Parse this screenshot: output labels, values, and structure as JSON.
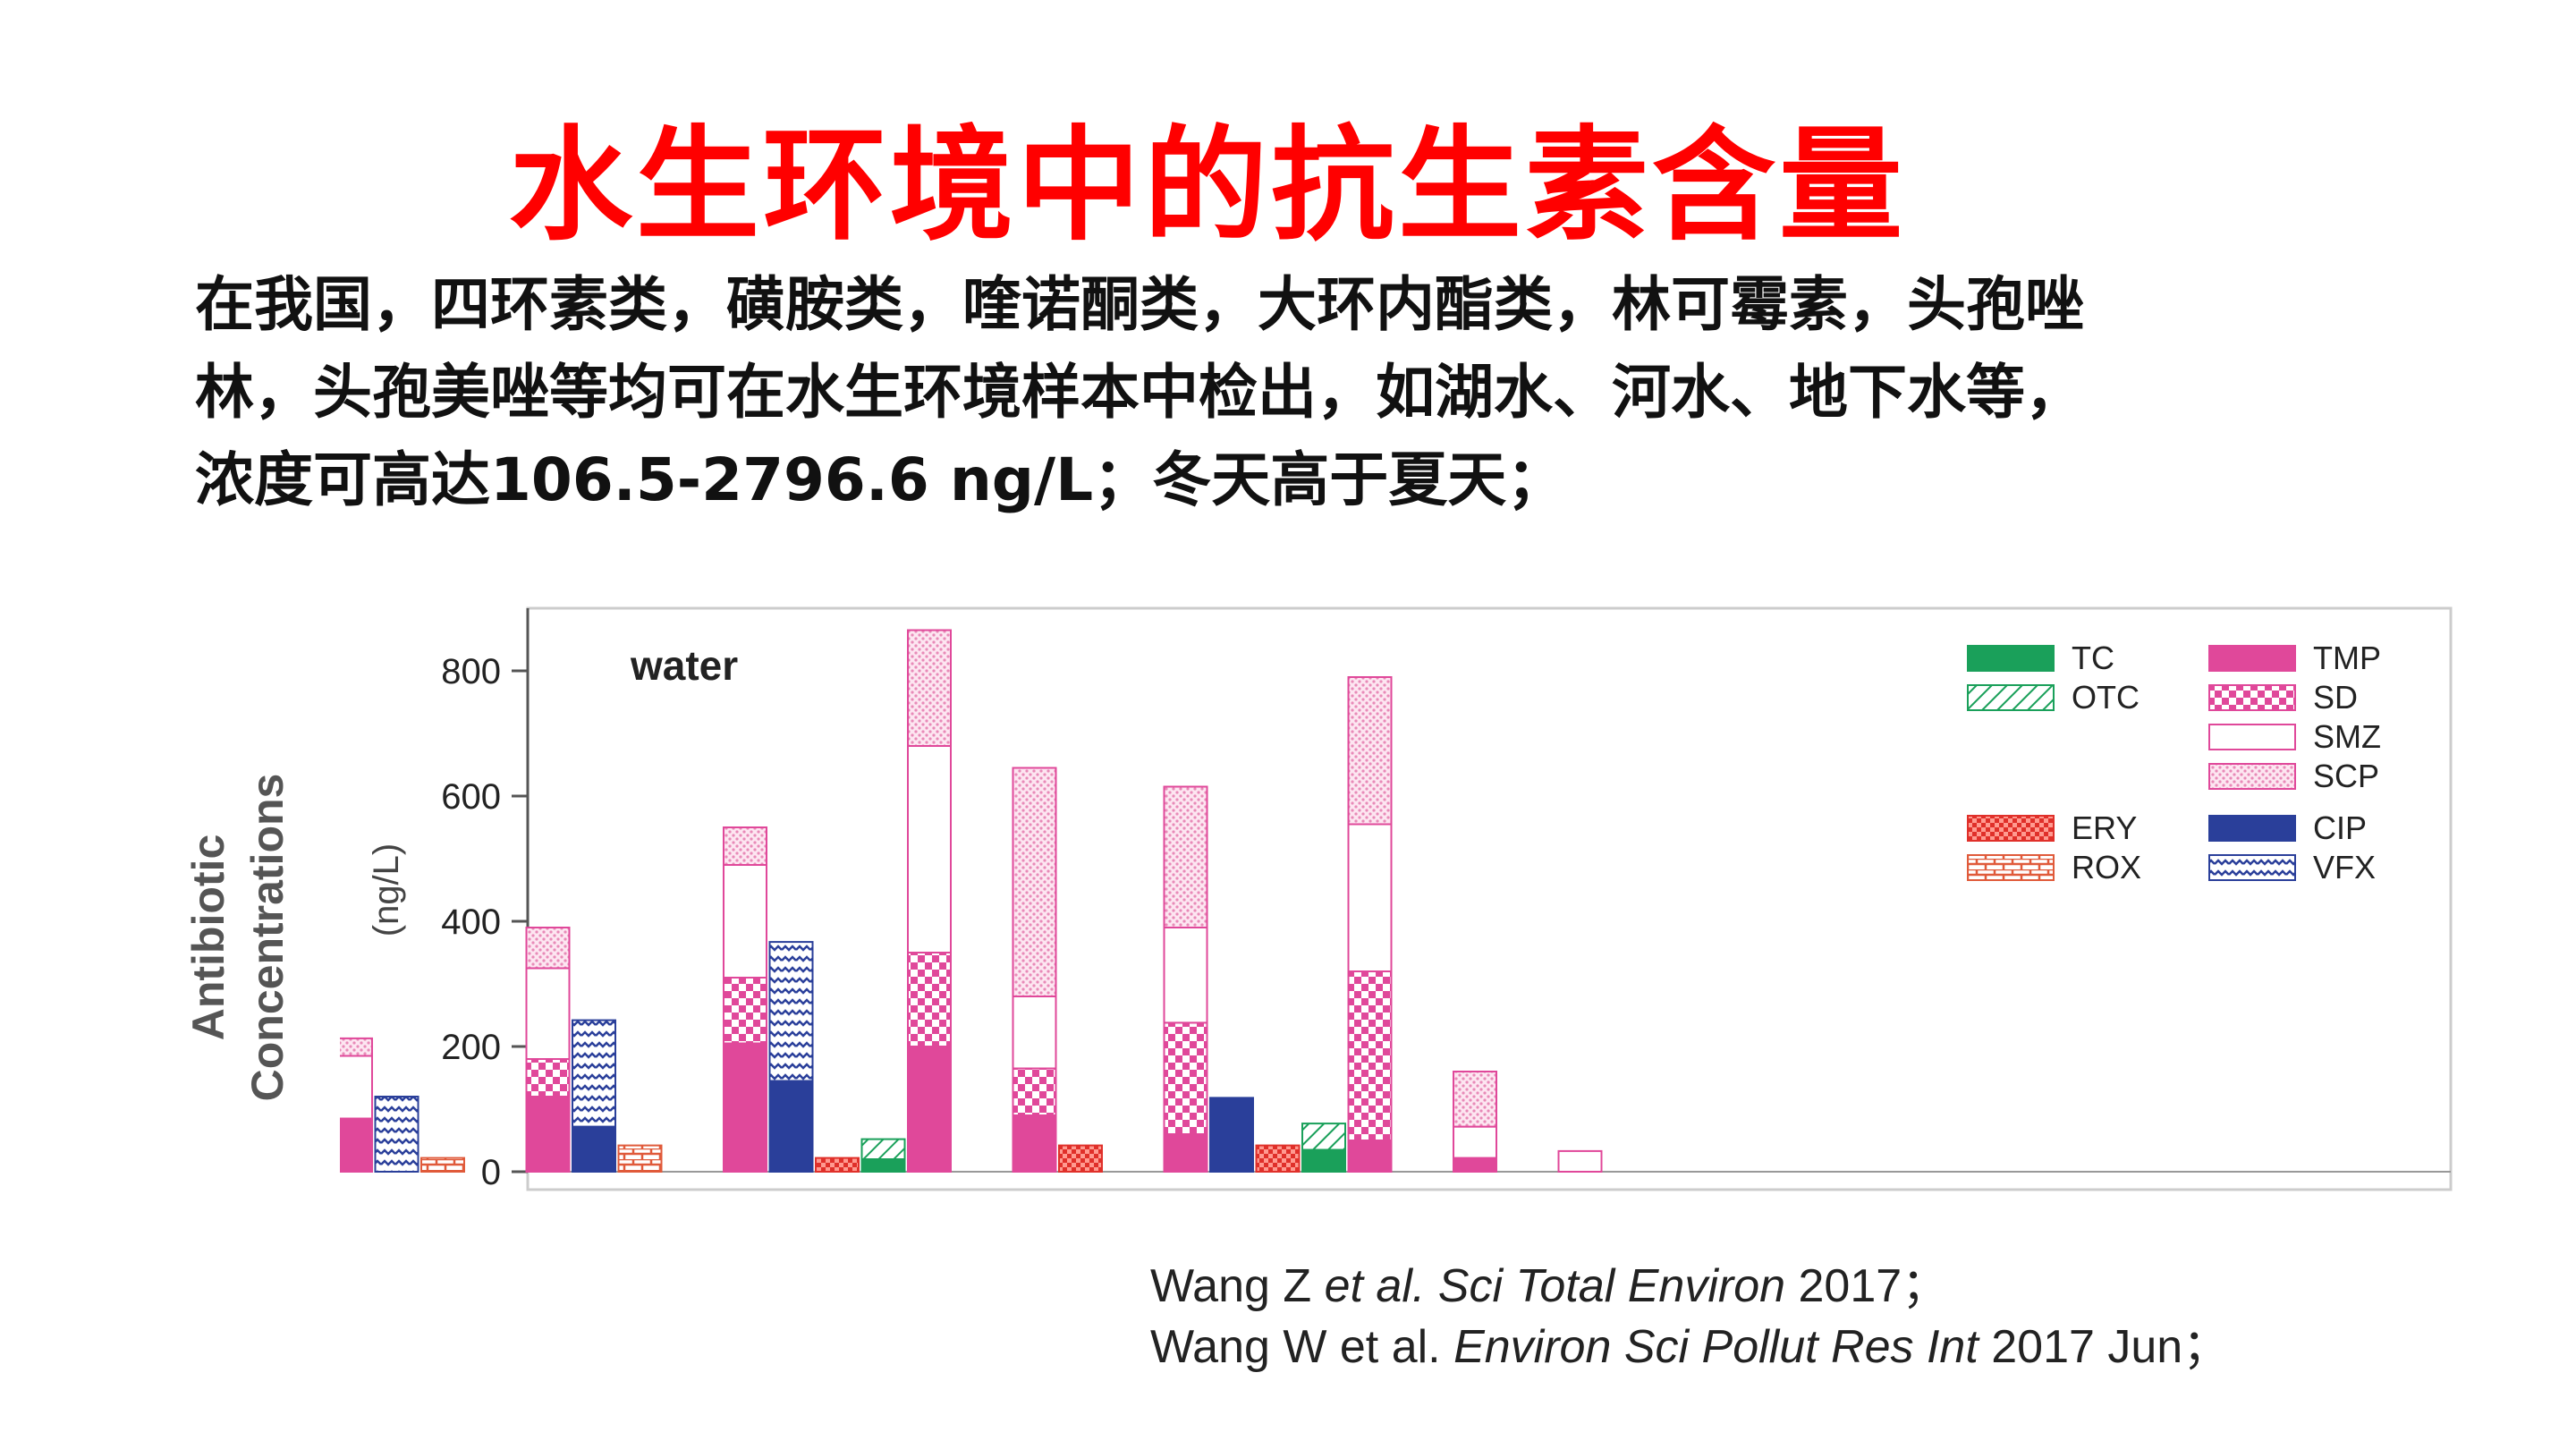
{
  "title": "水生环境中的抗生素含量",
  "paragraph_lines": [
    "在我国，四环素类，磺胺类，喹诺酮类，大环内酯类，林可霉素，头孢唑",
    "林，头孢美唑等均可在水生环境样本中检出，如湖水、河水、地下水等，",
    "浓度可高达106.5-2796.6 ng/L；冬天高于夏天；"
  ],
  "references": {
    "ref1": {
      "a": "Wang Z ",
      "b": "et al. Sci Total Environ",
      "c": " 2017；"
    },
    "ref2": {
      "a": "Wang W et al. ",
      "b": "Environ Sci Pollut Res Int",
      "c": " 2017 Jun；"
    }
  },
  "chart_data": {
    "type": "bar",
    "stacked": true,
    "annotation": "water",
    "ylabel_outer": [
      "Antibiotic",
      "Concentrations"
    ],
    "ylabel_unit": "(ng/L)",
    "ylim": [
      0,
      900
    ],
    "yticks": [
      0,
      200,
      400,
      600,
      800
    ],
    "legend_position": "top-right",
    "legend": [
      {
        "key": "TC",
        "color": "#1aa05a",
        "pattern": "solid"
      },
      {
        "key": "OTC",
        "color": "#1aa05a",
        "pattern": "hatch"
      },
      {
        "key": "ERY",
        "color": "#e0302a",
        "pattern": "cross"
      },
      {
        "key": "ROX",
        "color": "#e05a3a",
        "pattern": "brick"
      },
      {
        "key": "TMP",
        "color": "#e0489a",
        "pattern": "solid"
      },
      {
        "key": "SD",
        "color": "#e0489a",
        "pattern": "check"
      },
      {
        "key": "SMZ",
        "color": "#e0489a",
        "pattern": "empty"
      },
      {
        "key": "SCP",
        "color": "#e0489a",
        "pattern": "dots"
      },
      {
        "key": "CIP",
        "color": "#2a3f9a",
        "pattern": "solid"
      },
      {
        "key": "VFX",
        "color": "#2a3f9a",
        "pattern": "wave"
      }
    ],
    "bars": [
      {
        "group": 1,
        "segments": [
          {
            "key": "TMP",
            "value": 85
          },
          {
            "key": "SMZ",
            "value": 100
          },
          {
            "key": "SCP",
            "value": 28
          }
        ]
      },
      {
        "group": 1,
        "segments": [
          {
            "key": "VFX",
            "value": 120
          }
        ]
      },
      {
        "group": 1,
        "segments": [
          {
            "key": "ROX",
            "value": 22
          }
        ]
      },
      {
        "group": 2,
        "segments": [
          {
            "key": "TMP",
            "value": 120
          },
          {
            "key": "SD",
            "value": 60
          },
          {
            "key": "SMZ",
            "value": 145
          },
          {
            "key": "SCP",
            "value": 65
          }
        ]
      },
      {
        "group": 2,
        "segments": [
          {
            "key": "CIP",
            "value": 72
          },
          {
            "key": "VFX",
            "value": 170
          }
        ]
      },
      {
        "group": 2,
        "segments": [
          {
            "key": "ROX",
            "value": 42
          }
        ]
      },
      {
        "group": 3,
        "segments": [
          {
            "key": "TMP",
            "value": 205
          },
          {
            "key": "SD",
            "value": 105
          },
          {
            "key": "SMZ",
            "value": 180
          },
          {
            "key": "SCP",
            "value": 60
          }
        ]
      },
      {
        "group": 3,
        "segments": [
          {
            "key": "CIP",
            "value": 145
          },
          {
            "key": "VFX",
            "value": 222
          }
        ]
      },
      {
        "group": 3,
        "segments": [
          {
            "key": "ERY",
            "value": 22
          }
        ]
      },
      {
        "group": 3,
        "segments": [
          {
            "key": "TC",
            "value": 20
          },
          {
            "key": "OTC",
            "value": 32
          }
        ]
      },
      {
        "group": 3,
        "segments": [
          {
            "key": "TMP",
            "value": 200
          },
          {
            "key": "SD",
            "value": 150
          },
          {
            "key": "SMZ",
            "value": 330
          },
          {
            "key": "SCP",
            "value": 185
          }
        ]
      },
      {
        "group": 4,
        "segments": [
          {
            "key": "TMP",
            "value": 90
          },
          {
            "key": "SD",
            "value": 75
          },
          {
            "key": "SMZ",
            "value": 115
          },
          {
            "key": "SCP",
            "value": 365
          }
        ]
      },
      {
        "group": 4,
        "segments": [
          {
            "key": "ERY",
            "value": 42
          }
        ]
      },
      {
        "group": 5,
        "segments": [
          {
            "key": "TMP",
            "value": 60
          },
          {
            "key": "SD",
            "value": 178
          },
          {
            "key": "SMZ",
            "value": 152
          },
          {
            "key": "SCP",
            "value": 225
          }
        ]
      },
      {
        "group": 5,
        "segments": [
          {
            "key": "CIP",
            "value": 118
          }
        ]
      },
      {
        "group": 5,
        "segments": [
          {
            "key": "ERY",
            "value": 42
          }
        ]
      },
      {
        "group": 5,
        "segments": [
          {
            "key": "TC",
            "value": 35
          },
          {
            "key": "OTC",
            "value": 42
          }
        ]
      },
      {
        "group": 5,
        "segments": [
          {
            "key": "TMP",
            "value": 50
          },
          {
            "key": "SD",
            "value": 270
          },
          {
            "key": "SMZ",
            "value": 235
          },
          {
            "key": "SCP",
            "value": 235
          }
        ]
      },
      {
        "group": 6,
        "segments": [
          {
            "key": "TMP",
            "value": 22
          },
          {
            "key": "SMZ",
            "value": 50
          },
          {
            "key": "SCP",
            "value": 88
          }
        ]
      },
      {
        "group": 7,
        "segments": [
          {
            "key": "SMZ",
            "value": 33
          }
        ]
      }
    ]
  }
}
